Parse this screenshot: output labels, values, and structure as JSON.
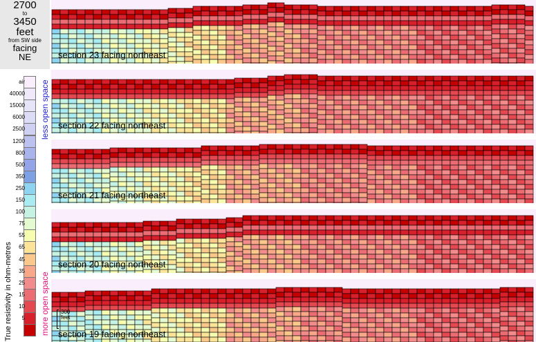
{
  "header": {
    "from": "2700",
    "to_word": "to",
    "to": "3450",
    "unit": "feet",
    "side": "from SW side",
    "facing_word": "facing",
    "direction": "NE"
  },
  "legend": {
    "title": "True resistivity in ohm-metres",
    "less_label": "less open space",
    "more_label": "more open space",
    "entries": [
      {
        "label": "air",
        "color": "#fbeefc"
      },
      {
        "label": "40000",
        "color": "#f0e8fb"
      },
      {
        "label": "15000",
        "color": "#e6e4f8"
      },
      {
        "label": "6000",
        "color": "#dcdcf6"
      },
      {
        "label": "2500",
        "color": "#cfd0f2"
      },
      {
        "label": "1200",
        "color": "#bcc2ef"
      },
      {
        "label": "800",
        "color": "#aab4ec"
      },
      {
        "label": "500",
        "color": "#93a4e8"
      },
      {
        "label": "350",
        "color": "#7ea0e4"
      },
      {
        "label": "250",
        "color": "#8ed4f0"
      },
      {
        "label": "150",
        "color": "#a8ecf2"
      },
      {
        "label": "100",
        "color": "#c6f2e4"
      },
      {
        "label": "75",
        "color": "#e4fad0"
      },
      {
        "label": "55",
        "color": "#f6fcb0"
      },
      {
        "label": "65",
        "color": "#fbe49a"
      },
      {
        "label": "45",
        "color": "#fbc88c"
      },
      {
        "label": "35",
        "color": "#f8a888"
      },
      {
        "label": "25",
        "color": "#f28c8c"
      },
      {
        "label": "15",
        "color": "#ec6c74"
      },
      {
        "label": "10",
        "color": "#e44850"
      },
      {
        "label": "5",
        "color": "#d8202c"
      },
      {
        "label": "",
        "color": "#c40000"
      }
    ]
  },
  "sections": [
    {
      "label": "section 23 facing northeast"
    },
    {
      "label": "section 22 facing northeast"
    },
    {
      "label": "section 21 facing northeast"
    },
    {
      "label": "section 20 facing northeast"
    },
    {
      "label": "section 19 facing northeast"
    }
  ],
  "scale": {
    "line1": "300",
    "line2": "feet"
  },
  "palette": [
    "#c40000",
    "#d8202c",
    "#e44850",
    "#ec6c74",
    "#f28c8c",
    "#f8a888",
    "#fbc88c",
    "#fbe49a",
    "#f6fcb0",
    "#e4fad0",
    "#c6f2e4",
    "#a8ecf2",
    "#8ed4f0",
    "#93a4e8"
  ],
  "air_color": "#fbeefc"
}
